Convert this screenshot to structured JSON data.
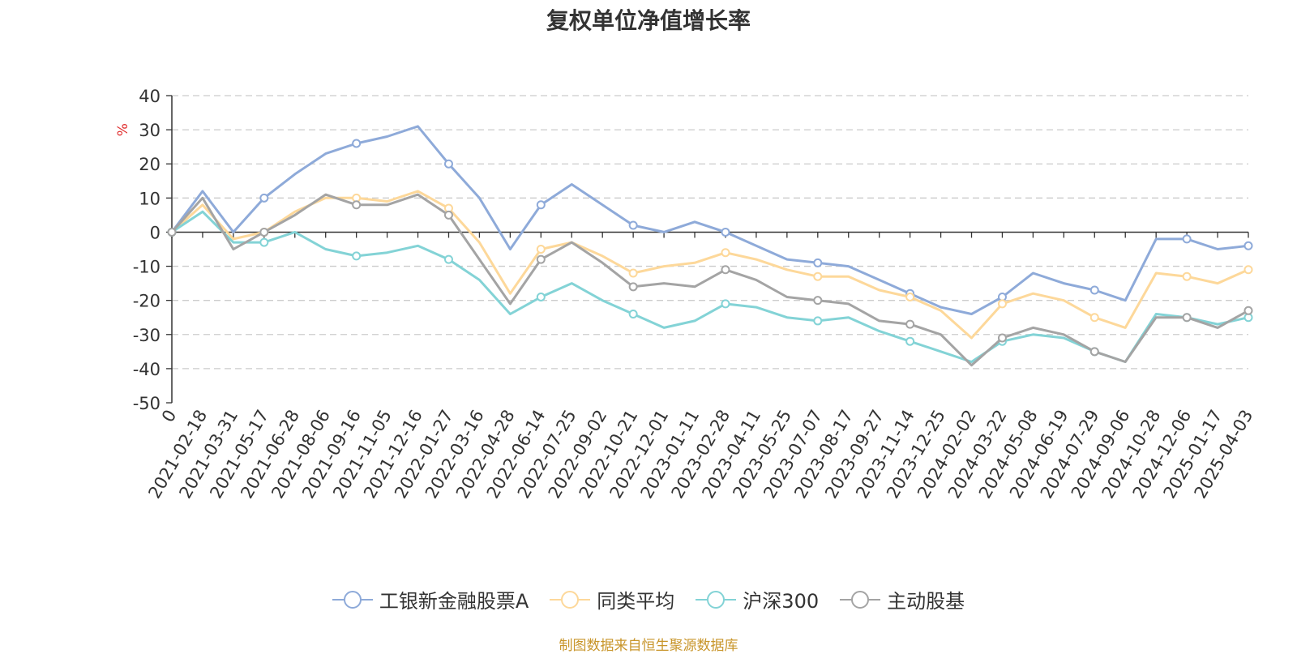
{
  "chart_data": {
    "type": "line",
    "title": "复权单位净值增长率",
    "ylabel": "%",
    "xlabel": "",
    "ylim": [
      -50,
      40
    ],
    "yticks": [
      40,
      30,
      20,
      10,
      0,
      -10,
      -20,
      -30,
      -40,
      -50
    ],
    "x_tick_labels": [
      "0",
      "2021-02-18",
      "2021-03-31",
      "2021-05-17",
      "2021-06-28",
      "2021-08-06",
      "2021-09-16",
      "2021-11-05",
      "2021-12-16",
      "2022-01-27",
      "2022-03-16",
      "2022-04-28",
      "2022-06-14",
      "2022-07-25",
      "2022-09-02",
      "2022-10-21",
      "2022-12-01",
      "2023-01-11",
      "2023-02-28",
      "2023-04-11",
      "2023-05-25",
      "2023-07-07",
      "2023-08-17",
      "2023-09-27",
      "2023-11-14",
      "2023-12-25",
      "2024-02-02",
      "2024-03-22",
      "2024-05-08",
      "2024-06-19",
      "2024-07-29",
      "2024-09-06",
      "2024-10-28",
      "2024-12-06",
      "2025-01-17",
      "2025-04-03"
    ],
    "x": [
      "0",
      "2021-02-18",
      "2021-03-31",
      "2021-05-17",
      "2021-06-28",
      "2021-08-06",
      "2021-09-16",
      "2021-11-05",
      "2021-12-16",
      "2022-01-27",
      "2022-03-16",
      "2022-04-28",
      "2022-06-14",
      "2022-07-25",
      "2022-09-02",
      "2022-10-21",
      "2022-12-01",
      "2023-01-11",
      "2023-02-28",
      "2023-04-11",
      "2023-05-25",
      "2023-07-07",
      "2023-08-17",
      "2023-09-27",
      "2023-11-14",
      "2023-12-25",
      "2024-02-02",
      "2024-03-22",
      "2024-05-08",
      "2024-06-19",
      "2024-07-29",
      "2024-09-06",
      "2024-10-28",
      "2024-12-06",
      "2025-01-17",
      "2025-04-03"
    ],
    "series": [
      {
        "name": "工银新金融股票A",
        "color": "#8eaad9",
        "values": [
          0,
          12,
          0,
          10,
          17,
          23,
          26,
          28,
          31,
          20,
          10,
          -5,
          8,
          14,
          8,
          2,
          0,
          3,
          0,
          -4,
          -8,
          -9,
          -10,
          -14,
          -18,
          -22,
          -24,
          -19,
          -12,
          -15,
          -17,
          -20,
          -2,
          -2,
          -5,
          -4
        ]
      },
      {
        "name": "同类平均",
        "color": "#fdd89a",
        "values": [
          0,
          8,
          -2,
          0,
          6,
          10,
          10,
          9,
          12,
          7,
          -3,
          -18,
          -5,
          -3,
          -7,
          -12,
          -10,
          -9,
          -6,
          -8,
          -11,
          -13,
          -13,
          -17,
          -19,
          -23,
          -31,
          -21,
          -18,
          -20,
          -25,
          -28,
          -12,
          -13,
          -15,
          -11
        ]
      },
      {
        "name": "沪深300",
        "color": "#83d3d6",
        "values": [
          0,
          6,
          -3,
          -3,
          0,
          -5,
          -7,
          -6,
          -4,
          -8,
          -14,
          -24,
          -19,
          -15,
          -20,
          -24,
          -28,
          -26,
          -21,
          -22,
          -25,
          -26,
          -25,
          -29,
          -32,
          -35,
          -38,
          -32,
          -30,
          -31,
          -35,
          -38,
          -24,
          -25,
          -27,
          -25
        ]
      },
      {
        "name": "主动股基",
        "color": "#a4a4a4",
        "values": [
          0,
          10,
          -5,
          0,
          5,
          11,
          8,
          8,
          11,
          5,
          -8,
          -21,
          -8,
          -3,
          -9,
          -16,
          -15,
          -16,
          -11,
          -14,
          -19,
          -20,
          -21,
          -26,
          -27,
          -30,
          -39,
          -31,
          -28,
          -30,
          -35,
          -38,
          -25,
          -25,
          -28,
          -23
        ]
      }
    ],
    "grid": true,
    "legend_position": "bottom-center"
  },
  "source": "制图数据来自恒生聚源数据库"
}
